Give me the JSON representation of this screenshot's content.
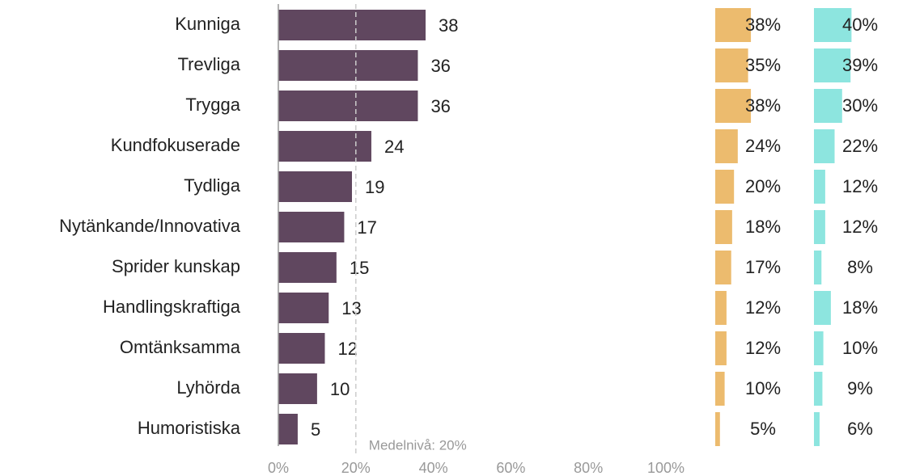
{
  "chart_data": {
    "type": "bar",
    "orientation": "horizontal",
    "categories": [
      "Kunniga",
      "Trevliga",
      "Trygga",
      "Kundfokuserade",
      "Tydliga",
      "Nytänkande/Innovativa",
      "Sprider kunskap",
      "Handlingskraftiga",
      "Omtänksamma",
      "Lyhörda",
      "Humoristiska"
    ],
    "values": [
      38,
      36,
      36,
      24,
      19,
      17,
      15,
      13,
      12,
      10,
      5
    ],
    "color": "#60475f",
    "xlim": [
      0,
      100
    ],
    "xticks": [
      {
        "value": 0,
        "label": "0%"
      },
      {
        "value": 20,
        "label": "20%"
      },
      {
        "value": 40,
        "label": "40%"
      },
      {
        "value": 60,
        "label": "60%"
      },
      {
        "value": 80,
        "label": "80%"
      },
      {
        "value": 100,
        "label": "100%"
      }
    ],
    "mean_line": {
      "value": 20,
      "label": "Medelnivå: 20%"
    },
    "side_series": [
      {
        "color": "#ecbb6e",
        "values": [
          38,
          35,
          38,
          24,
          20,
          18,
          17,
          12,
          12,
          10,
          5
        ],
        "value_labels": [
          "38%",
          "35%",
          "38%",
          "24%",
          "20%",
          "18%",
          "17%",
          "12%",
          "12%",
          "10%",
          "5%"
        ]
      },
      {
        "color": "#8de5df",
        "values": [
          40,
          39,
          30,
          22,
          12,
          12,
          8,
          18,
          10,
          9,
          6
        ],
        "value_labels": [
          "40%",
          "39%",
          "30%",
          "22%",
          "12%",
          "12%",
          "8%",
          "18%",
          "10%",
          "9%",
          "6%"
        ]
      }
    ]
  }
}
